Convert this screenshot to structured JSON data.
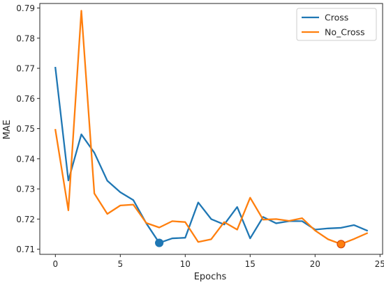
{
  "chart_data": {
    "type": "line",
    "xlabel": "Epochs",
    "ylabel": "MAE",
    "xlim": [
      -1.2,
      25.2
    ],
    "ylim": [
      0.7083,
      0.7915
    ],
    "xticks": [
      0,
      5,
      10,
      15,
      20,
      25
    ],
    "yticks": [
      0.71,
      0.72,
      0.73,
      0.74,
      0.75,
      0.76,
      0.77,
      0.78,
      0.79
    ],
    "xtick_labels": [
      "0",
      "5",
      "10",
      "15",
      "20",
      "25"
    ],
    "ytick_labels": [
      "0.71",
      "0.72",
      "0.73",
      "0.74",
      "0.75",
      "0.76",
      "0.77",
      "0.78",
      "0.79"
    ],
    "grid": false,
    "legend_position": "top-right",
    "x": [
      0,
      1,
      2,
      3,
      4,
      5,
      6,
      7,
      8,
      9,
      10,
      11,
      12,
      13,
      14,
      15,
      16,
      17,
      18,
      19,
      20,
      21,
      22,
      23,
      24
    ],
    "series": [
      {
        "name": "Cross",
        "color": "#1f77b4",
        "values": [
          0.7702,
          0.7328,
          0.7481,
          0.742,
          0.7327,
          0.7289,
          0.7263,
          0.7186,
          0.7121,
          0.7136,
          0.7138,
          0.7255,
          0.72,
          0.7182,
          0.724,
          0.7136,
          0.7207,
          0.7186,
          0.7193,
          0.7193,
          0.7165,
          0.7169,
          0.7171,
          0.718,
          0.7162
        ],
        "marker": {
          "x": 8,
          "y": 0.7121
        }
      },
      {
        "name": "No_Cross",
        "color": "#ff7f0e",
        "values": [
          0.7496,
          0.7229,
          0.7891,
          0.7285,
          0.7217,
          0.7245,
          0.7248,
          0.7187,
          0.7172,
          0.7193,
          0.719,
          0.7124,
          0.7133,
          0.719,
          0.7165,
          0.7271,
          0.7198,
          0.72,
          0.7194,
          0.7203,
          0.7162,
          0.7133,
          0.7117,
          0.7134,
          0.7153
        ],
        "marker": {
          "x": 22,
          "y": 0.7117
        }
      }
    ]
  }
}
